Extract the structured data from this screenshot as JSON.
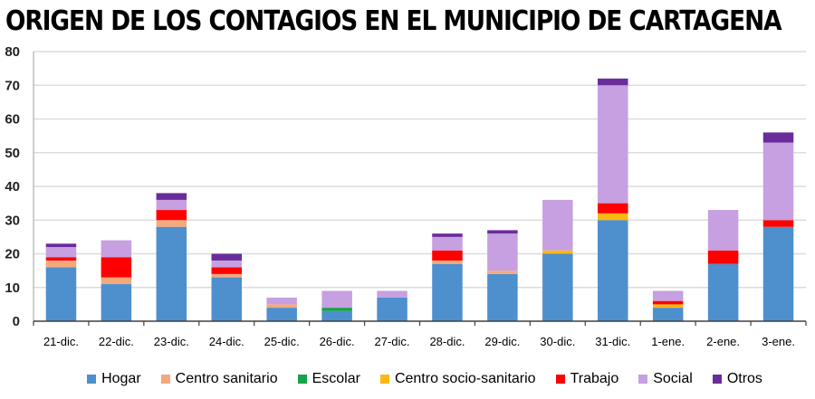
{
  "chart_data": {
    "type": "bar",
    "stacked": true,
    "title": "ORIGEN DE LOS CONTAGIOS EN EL MUNICIPIO DE CARTAGENA",
    "xlabel": "",
    "ylabel": "",
    "ylim": [
      0,
      80
    ],
    "yticks": [
      0,
      10,
      20,
      30,
      40,
      50,
      60,
      70,
      80
    ],
    "grid": true,
    "legend_position": "bottom",
    "categories": [
      "21-dic.",
      "22-dic.",
      "23-dic.",
      "24-dic.",
      "25-dic.",
      "26-dic.",
      "27-dic.",
      "28-dic.",
      "29-dic.",
      "30-dic.",
      "31-dic.",
      "1-ene.",
      "2-ene.",
      "3-ene."
    ],
    "series": [
      {
        "name": "Hogar",
        "color": "#4E8FCE",
        "values": [
          16,
          11,
          28,
          13,
          4,
          3,
          7,
          17,
          14,
          20,
          30,
          4,
          17,
          28
        ]
      },
      {
        "name": "Centro sanitario",
        "color": "#F4A97C",
        "values": [
          2,
          2,
          2,
          1,
          1,
          0,
          0,
          1,
          1,
          0,
          0,
          0,
          0,
          0
        ]
      },
      {
        "name": "Escolar",
        "color": "#16A34A",
        "values": [
          0,
          0,
          0,
          0,
          0,
          1,
          0,
          0,
          0,
          0,
          0,
          0,
          0,
          0
        ]
      },
      {
        "name": "Centro socio-sanitario",
        "color": "#FDB813",
        "values": [
          0,
          0,
          0,
          0,
          0,
          0,
          0,
          0,
          0,
          1,
          2,
          1,
          0,
          0
        ]
      },
      {
        "name": "Trabajo",
        "color": "#FF0000",
        "values": [
          1,
          6,
          3,
          2,
          0,
          0,
          0,
          3,
          0,
          0,
          3,
          1,
          4,
          2
        ]
      },
      {
        "name": "Social",
        "color": "#C6A0E0",
        "values": [
          3,
          5,
          3,
          2,
          2,
          5,
          2,
          4,
          11,
          15,
          35,
          3,
          12,
          23
        ]
      },
      {
        "name": "Otros",
        "color": "#6A2C9A",
        "values": [
          1,
          0,
          2,
          2,
          0,
          0,
          0,
          1,
          1,
          0,
          2,
          0,
          0,
          3
        ]
      }
    ]
  }
}
